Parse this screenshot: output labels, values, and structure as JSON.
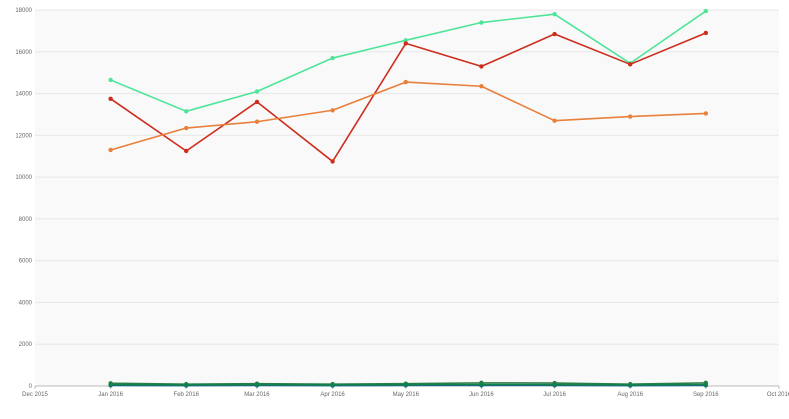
{
  "chart_data": {
    "type": "line",
    "title": "",
    "xlabel": "",
    "ylabel": "",
    "grid": true,
    "legend": "none",
    "x_ticks": [
      "Dec 2015",
      "Jan 2016",
      "Feb 2016",
      "Mar 2016",
      "Apr 2016",
      "May 2016",
      "Jun 2016",
      "Jul 2016",
      "Aug 2016",
      "Sep 2016",
      "Oct 2016"
    ],
    "y_ticks": [
      "0",
      "2000",
      "4000",
      "6000",
      "8000",
      "10000",
      "12000",
      "14000",
      "16000",
      "18000"
    ],
    "x_domain": [
      "2015-12-01",
      "2016-10-01"
    ],
    "ylim": [
      0,
      18000
    ],
    "x": [
      "2016-01-01",
      "2016-02-01",
      "2016-03-01",
      "2016-04-01",
      "2016-05-01",
      "2016-06-01",
      "2016-07-01",
      "2016-08-01",
      "2016-09-01"
    ],
    "series": [
      {
        "color": "#4ee59a",
        "values": [
          14650,
          13150,
          14100,
          15700,
          16550,
          17400,
          17800,
          15450,
          17950
        ]
      },
      {
        "color": "#cc2d1c",
        "values": [
          13750,
          11250,
          13600,
          10750,
          16400,
          15300,
          16850,
          15400,
          16900
        ]
      },
      {
        "color": "#e87f3a",
        "values": [
          11300,
          12350,
          12650,
          13200,
          14550,
          14350,
          12700,
          12900,
          13050
        ]
      },
      {
        "color": "#2a7d46",
        "values": [
          130,
          90,
          110,
          90,
          110,
          150,
          140,
          90,
          150
        ]
      },
      {
        "color": "#1a5e9e",
        "values": [
          30,
          20,
          30,
          20,
          30,
          30,
          30,
          20,
          30
        ]
      },
      {
        "color": "#11824a",
        "values": [
          60,
          50,
          60,
          50,
          60,
          70,
          60,
          50,
          70
        ]
      }
    ]
  }
}
